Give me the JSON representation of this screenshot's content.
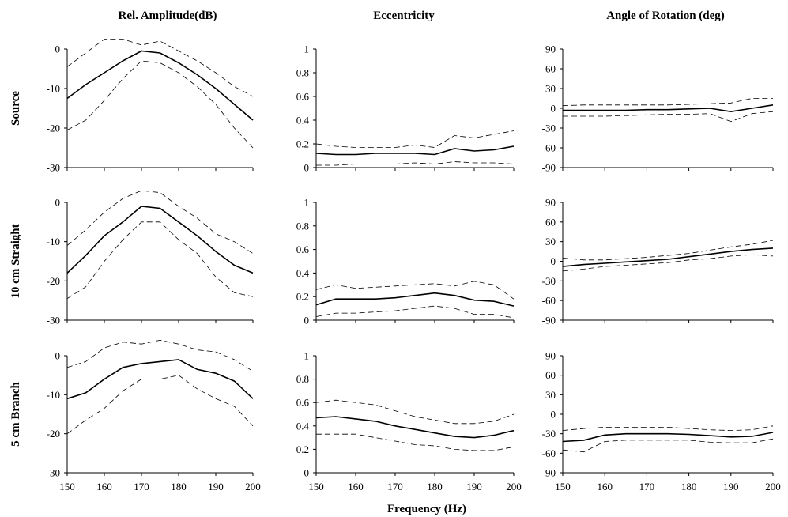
{
  "chart_data": {
    "type": "line",
    "layout": "3x3 small multiples",
    "xlabel": "Frequency (Hz)",
    "column_titles": [
      "Rel. Amplitude(dB)",
      "Eccentricity",
      "Angle of Rotation (deg)"
    ],
    "row_titles": [
      "Source",
      "10 cm Straight",
      "5 cm Branch"
    ],
    "x": [
      150,
      155,
      160,
      165,
      170,
      175,
      180,
      185,
      190,
      195,
      200
    ],
    "x_ticks": [
      "150",
      "160",
      "170",
      "180",
      "190",
      "200"
    ],
    "x_tick_values": [
      150,
      160,
      170,
      180,
      190,
      200
    ],
    "line_styles": {
      "mean": "solid",
      "upper_bound": "dashed",
      "lower_bound": "dashed"
    },
    "axes": {
      "amplitude": {
        "ylim": [
          -30,
          0
        ],
        "y_ticks": [
          "0",
          "-10",
          "-20",
          "-30"
        ],
        "y_tick_values": [
          0,
          -10,
          -20,
          -30
        ]
      },
      "eccentricity": {
        "ylim": [
          0,
          1
        ],
        "y_ticks": [
          "1",
          "0.8",
          "0.6",
          "0.4",
          "0.2",
          "0"
        ],
        "y_tick_values": [
          1,
          0.8,
          0.6,
          0.4,
          0.2,
          0
        ]
      },
      "rotation": {
        "ylim": [
          -90,
          90
        ],
        "y_ticks": [
          "90",
          "60",
          "30",
          "0",
          "-30",
          "-60",
          "-90"
        ],
        "y_tick_values": [
          90,
          60,
          30,
          0,
          -30,
          -60,
          -90
        ]
      }
    },
    "panels": [
      {
        "row": 0,
        "col": 0,
        "axis": "amplitude",
        "mean": [
          -12.5,
          -9,
          -6,
          -3,
          -0.5,
          -1,
          -3.5,
          -6.5,
          -10,
          -14,
          -18
        ],
        "upper": [
          -4.5,
          -1,
          2.5,
          2.5,
          1,
          2,
          -0.5,
          -3,
          -6,
          -9.5,
          -12
        ],
        "lower": [
          -20.5,
          -18,
          -13,
          -7.5,
          -3,
          -3.5,
          -6,
          -9.5,
          -14,
          -20,
          -25
        ]
      },
      {
        "row": 0,
        "col": 1,
        "axis": "eccentricity",
        "mean": [
          0.12,
          0.11,
          0.11,
          0.12,
          0.12,
          0.12,
          0.11,
          0.16,
          0.14,
          0.15,
          0.18
        ],
        "upper": [
          0.2,
          0.18,
          0.17,
          0.17,
          0.17,
          0.19,
          0.17,
          0.27,
          0.25,
          0.28,
          0.31
        ],
        "lower": [
          0.02,
          0.02,
          0.03,
          0.03,
          0.03,
          0.04,
          0.03,
          0.05,
          0.04,
          0.04,
          0.03
        ]
      },
      {
        "row": 0,
        "col": 2,
        "axis": "rotation",
        "mean": [
          -3,
          -3,
          -3,
          -3,
          -2,
          -2,
          -1,
          0,
          -5,
          0,
          5
        ],
        "upper": [
          4,
          5,
          5,
          5,
          5,
          5,
          6,
          7,
          8,
          15,
          15
        ],
        "lower": [
          -12,
          -12,
          -12,
          -11,
          -10,
          -9,
          -9,
          -8,
          -20,
          -8,
          -5
        ]
      },
      {
        "row": 1,
        "col": 0,
        "axis": "amplitude",
        "mean": [
          -18,
          -13.5,
          -8.5,
          -5,
          -1,
          -1.5,
          -5,
          -8.5,
          -12.5,
          -16,
          -18
        ],
        "upper": [
          -11,
          -7,
          -2.5,
          1,
          3,
          2.5,
          -1,
          -4,
          -8,
          -10,
          -13
        ],
        "lower": [
          -24.5,
          -21.5,
          -15,
          -9.5,
          -5,
          -5,
          -9.5,
          -13,
          -19,
          -23,
          -24
        ]
      },
      {
        "row": 1,
        "col": 1,
        "axis": "eccentricity",
        "mean": [
          0.13,
          0.18,
          0.18,
          0.18,
          0.19,
          0.21,
          0.23,
          0.21,
          0.17,
          0.16,
          0.12
        ],
        "upper": [
          0.26,
          0.3,
          0.27,
          0.28,
          0.29,
          0.3,
          0.31,
          0.29,
          0.33,
          0.3,
          0.18
        ],
        "lower": [
          0.03,
          0.06,
          0.06,
          0.07,
          0.08,
          0.1,
          0.12,
          0.1,
          0.05,
          0.05,
          0.02
        ]
      },
      {
        "row": 1,
        "col": 2,
        "axis": "rotation",
        "mean": [
          -8,
          -5,
          -3,
          -1,
          1,
          3,
          7,
          11,
          15,
          18,
          20
        ],
        "upper": [
          5,
          2,
          2,
          4,
          6,
          9,
          12,
          17,
          22,
          26,
          32
        ],
        "lower": [
          -15,
          -12,
          -8,
          -6,
          -4,
          -2,
          2,
          4,
          8,
          10,
          8
        ]
      },
      {
        "row": 2,
        "col": 0,
        "axis": "amplitude",
        "mean": [
          -11,
          -9.5,
          -6,
          -3,
          -2,
          -1.5,
          -1,
          -3.5,
          -4.5,
          -6.5,
          -11
        ],
        "upper": [
          -3,
          -1.5,
          2,
          3.5,
          3,
          4,
          3,
          1.5,
          1,
          -1,
          -4
        ],
        "lower": [
          -20,
          -16.5,
          -13.5,
          -9,
          -6,
          -6,
          -5,
          -8.5,
          -11,
          -13,
          -18
        ]
      },
      {
        "row": 2,
        "col": 1,
        "axis": "eccentricity",
        "mean": [
          0.47,
          0.48,
          0.46,
          0.44,
          0.4,
          0.37,
          0.34,
          0.31,
          0.3,
          0.32,
          0.36
        ],
        "upper": [
          0.6,
          0.62,
          0.6,
          0.58,
          0.53,
          0.48,
          0.45,
          0.42,
          0.42,
          0.44,
          0.5
        ],
        "lower": [
          0.33,
          0.33,
          0.33,
          0.3,
          0.27,
          0.24,
          0.23,
          0.2,
          0.19,
          0.19,
          0.22
        ]
      },
      {
        "row": 2,
        "col": 2,
        "axis": "rotation",
        "mean": [
          -42,
          -40,
          -32,
          -30,
          -30,
          -30,
          -31,
          -33,
          -35,
          -34,
          -28
        ],
        "upper": [
          -25,
          -22,
          -20,
          -20,
          -20,
          -20,
          -22,
          -24,
          -25,
          -24,
          -18
        ],
        "lower": [
          -55,
          -58,
          -42,
          -40,
          -40,
          -40,
          -40,
          -43,
          -44,
          -44,
          -38
        ]
      }
    ]
  }
}
